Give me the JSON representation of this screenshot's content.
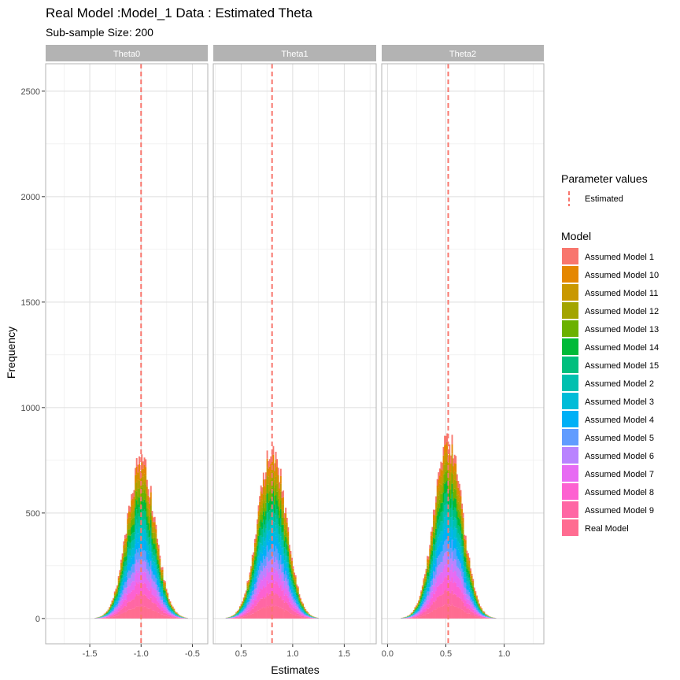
{
  "chart_data": {
    "type": "histogram",
    "title": "Real Model :Model_1 Data : Estimated Theta",
    "subtitle": "Sub-sample Size: 200",
    "xlabel": "Estimates",
    "ylabel": "Frequency",
    "ylim": [
      -120,
      2630
    ],
    "y_ticks": [
      0,
      500,
      1000,
      1500,
      2000,
      2500
    ],
    "grid": true,
    "facets": [
      {
        "label": "Theta0",
        "xlim": [
          -1.93,
          -0.35
        ],
        "x_ticks": [
          -1.5,
          -1.0,
          -0.5
        ],
        "x_tick_labels": [
          "-1.5",
          "-1.0",
          "-0.5"
        ],
        "estimated_line": -1.0,
        "peak_count": 750,
        "spread_sd": 0.135,
        "support": [
          -1.68,
          -0.42
        ]
      },
      {
        "label": "Theta1",
        "xlim": [
          0.23,
          1.81
        ],
        "x_ticks": [
          0.5,
          1.0,
          1.5
        ],
        "x_tick_labels": [
          "0.5",
          "1.0",
          "1.5"
        ],
        "estimated_line": 0.8,
        "peak_count": 805,
        "spread_sd": 0.135,
        "support": [
          0.35,
          1.55
        ]
      },
      {
        "label": "Theta2",
        "xlim": [
          -0.05,
          1.34
        ],
        "x_ticks": [
          0.0,
          0.5,
          1.0
        ],
        "x_tick_labels": [
          "0.0",
          "0.5",
          "1.0"
        ],
        "estimated_line": 0.52,
        "peak_count": 840,
        "spread_sd": 0.12,
        "support": [
          0.06,
          1.12
        ]
      }
    ],
    "legend": {
      "placement": "right",
      "line_title": "Parameter values",
      "line_label": "Estimated",
      "line_color": "#f8766d",
      "fill_title": "Model",
      "series": [
        {
          "name": "Assumed Model 1",
          "color": "#f8766d"
        },
        {
          "name": "Assumed Model 10",
          "color": "#e58700"
        },
        {
          "name": "Assumed Model 11",
          "color": "#c99800"
        },
        {
          "name": "Assumed Model 12",
          "color": "#a3a500"
        },
        {
          "name": "Assumed Model 13",
          "color": "#6bb100"
        },
        {
          "name": "Assumed Model 14",
          "color": "#00ba38"
        },
        {
          "name": "Assumed Model 15",
          "color": "#00bf7d"
        },
        {
          "name": "Assumed Model 2",
          "color": "#00c0af"
        },
        {
          "name": "Assumed Model 3",
          "color": "#00bcd8"
        },
        {
          "name": "Assumed Model 4",
          "color": "#00b0f6"
        },
        {
          "name": "Assumed Model 5",
          "color": "#619cff"
        },
        {
          "name": "Assumed Model 6",
          "color": "#b983ff"
        },
        {
          "name": "Assumed Model 7",
          "color": "#e76bf3"
        },
        {
          "name": "Assumed Model 8",
          "color": "#fd61d1"
        },
        {
          "name": "Assumed Model 9",
          "color": "#ff67a4"
        },
        {
          "name": "Real Model",
          "color": "#ff6c91"
        }
      ]
    }
  }
}
